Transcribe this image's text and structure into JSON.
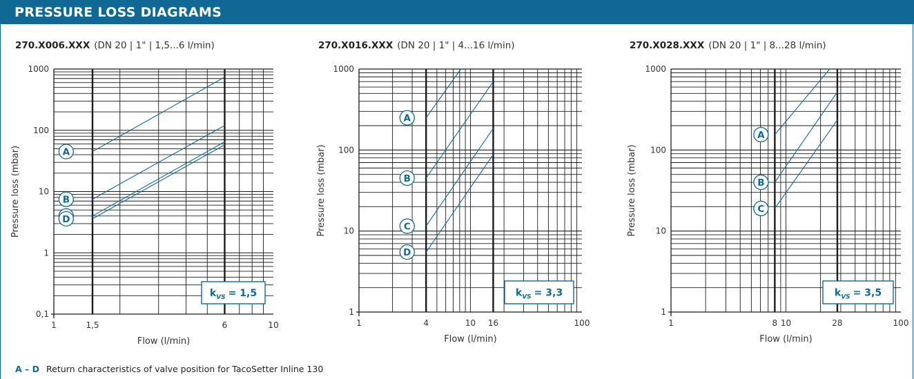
{
  "header": {
    "title": "PRESSURE LOSS DIAGRAMS"
  },
  "colors": {
    "accent": "#0f6994",
    "grid": "#1a1a1a",
    "curve": "#0f6994"
  },
  "chart_data": [
    {
      "type": "line",
      "title": "270.X006.XXX",
      "subtitle": "(DN 20 | 1\" | 1,5...6 l/min)",
      "xlabel": "Flow (l/min)",
      "ylabel": "Pressure loss (mbar)",
      "x_scale": "log",
      "y_scale": "log",
      "xlim": [
        1,
        10
      ],
      "ylim": [
        0.1,
        1000
      ],
      "x_ticks": [
        1,
        1.5,
        6,
        10
      ],
      "x_tick_labels": [
        "1",
        "1,5",
        "6",
        "10"
      ],
      "y_ticks": [
        0.1,
        1,
        10,
        100,
        1000
      ],
      "y_tick_labels": [
        "0,1",
        "1",
        "10",
        "100",
        "1000"
      ],
      "bold_x": [
        1.5,
        6
      ],
      "grid": true,
      "kvs_label": "k",
      "kvs_sub": "VS",
      "kvs_value": "= 1,5",
      "series": [
        {
          "name": "A",
          "x": [
            1.5,
            6
          ],
          "y": [
            45,
            740
          ]
        },
        {
          "name": "B",
          "x": [
            1.5,
            6
          ],
          "y": [
            7.5,
            120
          ]
        },
        {
          "name": "C",
          "x": [
            1.5,
            6
          ],
          "y": [
            4,
            65
          ]
        },
        {
          "name": "D",
          "x": [
            1.5,
            6
          ],
          "y": [
            3.6,
            58
          ]
        }
      ]
    },
    {
      "type": "line",
      "title": "270.X016.XXX",
      "subtitle": "(DN 20 | 1\" | 4...16 l/min)",
      "xlabel": "Flow (l/min)",
      "ylabel": "Pressure loss (mbar)",
      "x_scale": "log",
      "y_scale": "log",
      "xlim": [
        1,
        100
      ],
      "ylim": [
        1,
        1000
      ],
      "x_ticks": [
        1,
        4,
        10,
        16,
        100
      ],
      "x_tick_labels": [
        "1",
        "4",
        "10",
        "16",
        "100"
      ],
      "y_ticks": [
        1,
        10,
        100,
        1000
      ],
      "y_tick_labels": [
        "1",
        "10",
        "100",
        "1000"
      ],
      "bold_x": [
        4,
        16
      ],
      "grid": true,
      "kvs_label": "k",
      "kvs_sub": "VS",
      "kvs_value": "= 3,3",
      "series": [
        {
          "name": "A",
          "x": [
            4,
            8.2
          ],
          "y": [
            250,
            1000
          ]
        },
        {
          "name": "B",
          "x": [
            4,
            16
          ],
          "y": [
            45,
            700
          ]
        },
        {
          "name": "C",
          "x": [
            4,
            16
          ],
          "y": [
            11.5,
            185
          ]
        },
        {
          "name": "D",
          "x": [
            4,
            16
          ],
          "y": [
            5.5,
            88
          ]
        }
      ]
    },
    {
      "type": "line",
      "title": "270.X028.XXX",
      "subtitle": "(DN 20 | 1\" | 8...28 l/min)",
      "xlabel": "Flow (l/min)",
      "ylabel": "Pressure loss (mbar)",
      "x_scale": "log",
      "y_scale": "log",
      "xlim": [
        1,
        100
      ],
      "ylim": [
        1,
        1000
      ],
      "x_ticks": [
        1,
        8,
        10,
        28,
        100
      ],
      "x_tick_labels": [
        "1",
        "8",
        "10",
        "28",
        "100"
      ],
      "y_ticks": [
        1,
        10,
        100,
        1000
      ],
      "y_tick_labels": [
        "1",
        "10",
        "100",
        "1000"
      ],
      "bold_x": [
        8,
        28
      ],
      "grid": true,
      "kvs_label": "k",
      "kvs_sub": "VS",
      "kvs_value": "= 3,5",
      "series": [
        {
          "name": "A",
          "x": [
            8,
            24
          ],
          "y": [
            155,
            1000
          ]
        },
        {
          "name": "B",
          "x": [
            8,
            28
          ],
          "y": [
            40,
            520
          ]
        },
        {
          "name": "C",
          "x": [
            8,
            28
          ],
          "y": [
            19,
            235
          ]
        }
      ]
    }
  ],
  "footnote": {
    "key": "A – D",
    "text": "Return characteristics of valve position for TacoSetter Inline 130"
  }
}
